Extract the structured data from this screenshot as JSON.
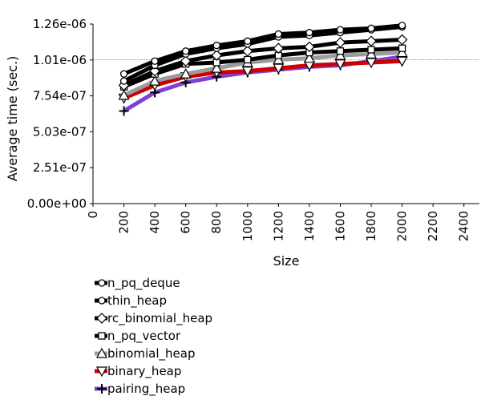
{
  "chart_data": {
    "type": "line",
    "xlabel": "Size",
    "ylabel": "Average time (sec.)",
    "x_ticks": [
      "0",
      "200",
      "400",
      "600",
      "800",
      "1000",
      "1200",
      "1400",
      "1600",
      "1800",
      "2000",
      "2200",
      "2400"
    ],
    "y_ticks": [
      "0.00e+00",
      "2.51e-07",
      "5.03e-07",
      "7.54e-07",
      "1.01e-06",
      "1.26e-06"
    ],
    "xlim": [
      0,
      2500
    ],
    "ylim": [
      0,
      1.26e-06
    ],
    "grid": false,
    "reference_line_y": 1.01e-06,
    "legend_position": "below",
    "x": [
      200,
      400,
      600,
      800,
      1000,
      1200,
      1400,
      1600,
      1800,
      2000
    ],
    "series": [
      {
        "name": "n_pq_deque",
        "marker": "circle",
        "color": "#000000",
        "values": [
          9.1e-07,
          1e-06,
          1.07e-06,
          1.11e-06,
          1.14e-06,
          1.19e-06,
          1.2e-06,
          1.22e-06,
          1.23e-06,
          1.25e-06
        ]
      },
      {
        "name": "thin_heap",
        "marker": "circle",
        "color": "#000000",
        "values": [
          8.6e-07,
          9.7e-07,
          1.05e-06,
          1.09e-06,
          1.12e-06,
          1.17e-06,
          1.18e-06,
          1.2e-06,
          1.22e-06,
          1.24e-06
        ]
      },
      {
        "name": "rc_binomial_heap",
        "marker": "diamond",
        "color": "#000000",
        "values": [
          8.3e-07,
          9.3e-07,
          1e-06,
          1.04e-06,
          1.07e-06,
          1.09e-06,
          1.1e-06,
          1.13e-06,
          1.14e-06,
          1.15e-06
        ]
      },
      {
        "name": "n_pq_vector",
        "marker": "square",
        "color": "#000000",
        "values": [
          8.2e-07,
          9.1e-07,
          9.8e-07,
          9.9e-07,
          1.01e-06,
          1.04e-06,
          1.06e-06,
          1.07e-06,
          1.08e-06,
          1.09e-06
        ]
      },
      {
        "name": "binomial_heap",
        "marker": "triangle-up",
        "color": "#9b9b9b",
        "values": [
          7.6e-07,
          8.6e-07,
          9.1e-07,
          9.5e-07,
          9.9e-07,
          1.01e-06,
          1.02e-06,
          1.04e-06,
          1.05e-06,
          1.06e-06
        ]
      },
      {
        "name": "binary_heap",
        "marker": "triangle-down",
        "color": "#cc0000",
        "values": [
          7.4e-07,
          8.3e-07,
          8.9e-07,
          9.2e-07,
          9.3e-07,
          9.5e-07,
          9.7e-07,
          9.8e-07,
          9.9e-07,
          1e-06
        ]
      },
      {
        "name": "pairing_heap",
        "marker": "plus",
        "color": "#7f3fd4",
        "values": [
          6.5e-07,
          7.8e-07,
          8.5e-07,
          8.9e-07,
          9.2e-07,
          9.4e-07,
          9.6e-07,
          9.7e-07,
          1e-06,
          1.03e-06
        ]
      }
    ]
  }
}
